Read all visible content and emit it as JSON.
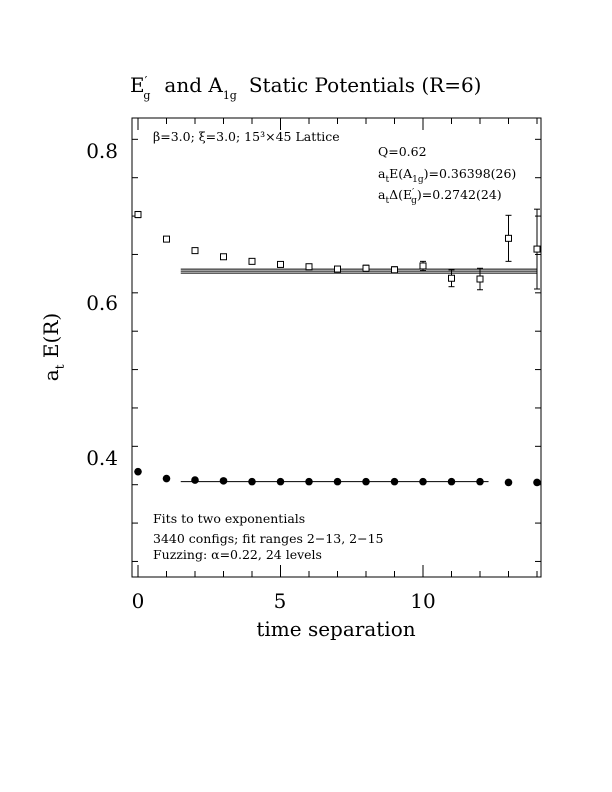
{
  "title": {
    "main": "E",
    "main_prime": "′",
    "main_sub": "g",
    "mid": "and A",
    "mid_sub": "1g",
    "end": "Static Potentials (R=6)"
  },
  "chart_data": {
    "type": "scatter",
    "xlabel": "time separation",
    "ylabel": {
      "main": "a",
      "sub": "t",
      "rest": " E(R)"
    },
    "xlim": [
      -0.3,
      14
    ],
    "ylim": [
      0.255,
      0.84
    ],
    "x_ticks": [
      0,
      5,
      10
    ],
    "x_tick_labels": [
      "0",
      "5",
      "10"
    ],
    "y_ticks": [
      0.4,
      0.6,
      0.8
    ],
    "y_tick_labels": [
      "0.4",
      "0.6",
      "0.8"
    ],
    "grid": false,
    "series": [
      {
        "marker": "open-square",
        "points": [
          {
            "x": 0,
            "y": 0.712,
            "err": 0.004
          },
          {
            "x": 1,
            "y": 0.68,
            "err": 0.003
          },
          {
            "x": 2,
            "y": 0.665,
            "err": 0.003
          },
          {
            "x": 3,
            "y": 0.657,
            "err": 0.003
          },
          {
            "x": 4,
            "y": 0.651,
            "err": 0.003
          },
          {
            "x": 5,
            "y": 0.647,
            "err": 0.003
          },
          {
            "x": 6,
            "y": 0.644,
            "err": 0.003
          },
          {
            "x": 7,
            "y": 0.641,
            "err": 0.003
          },
          {
            "x": 8,
            "y": 0.642,
            "err": 0.004
          },
          {
            "x": 9,
            "y": 0.64,
            "err": 0.004
          },
          {
            "x": 10,
            "y": 0.645,
            "err": 0.006
          },
          {
            "x": 11,
            "y": 0.629,
            "err": 0.011
          },
          {
            "x": 12,
            "y": 0.628,
            "err": 0.014
          },
          {
            "x": 13,
            "y": 0.681,
            "err": 0.03
          },
          {
            "x": 14,
            "y": 0.667,
            "err": 0.052
          }
        ],
        "fit": {
          "x_range": [
            1.5,
            14
          ],
          "center": 0.6382,
          "upper": 0.6408,
          "lower": 0.6356
        }
      },
      {
        "marker": "filled-circle",
        "points": [
          {
            "x": 0,
            "y": 0.377
          },
          {
            "x": 1,
            "y": 0.368
          },
          {
            "x": 2,
            "y": 0.366
          },
          {
            "x": 3,
            "y": 0.365
          },
          {
            "x": 4,
            "y": 0.364
          },
          {
            "x": 5,
            "y": 0.364
          },
          {
            "x": 6,
            "y": 0.364
          },
          {
            "x": 7,
            "y": 0.364
          },
          {
            "x": 8,
            "y": 0.364
          },
          {
            "x": 9,
            "y": 0.364
          },
          {
            "x": 10,
            "y": 0.364
          },
          {
            "x": 11,
            "y": 0.364
          },
          {
            "x": 12,
            "y": 0.364
          },
          {
            "x": 13,
            "y": 0.363
          },
          {
            "x": 14,
            "y": 0.363
          }
        ],
        "fit": {
          "x_range": [
            1.5,
            12.3
          ],
          "center": 0.36398
        }
      }
    ]
  },
  "annotations": {
    "lattice": "β=3.0; ξ=3.0; 15³×45 Lattice",
    "q": "Q=0.62",
    "ea1g": {
      "pre": "a",
      "pre_sub": "t",
      "main": "E(A",
      "sub": "1g",
      "post": ")=0.36398(26)"
    },
    "delta": {
      "pre": "a",
      "pre_sub": "t",
      "main": "Δ(E",
      "prime": "′",
      "sub": "g",
      "post": ")=0.2742(24)"
    },
    "fits": "Fits to two exponentials",
    "configs": "3440 configs; fit ranges 2−13, 2−15",
    "fuzzing": "Fuzzing: α=0.22, 24 levels"
  }
}
